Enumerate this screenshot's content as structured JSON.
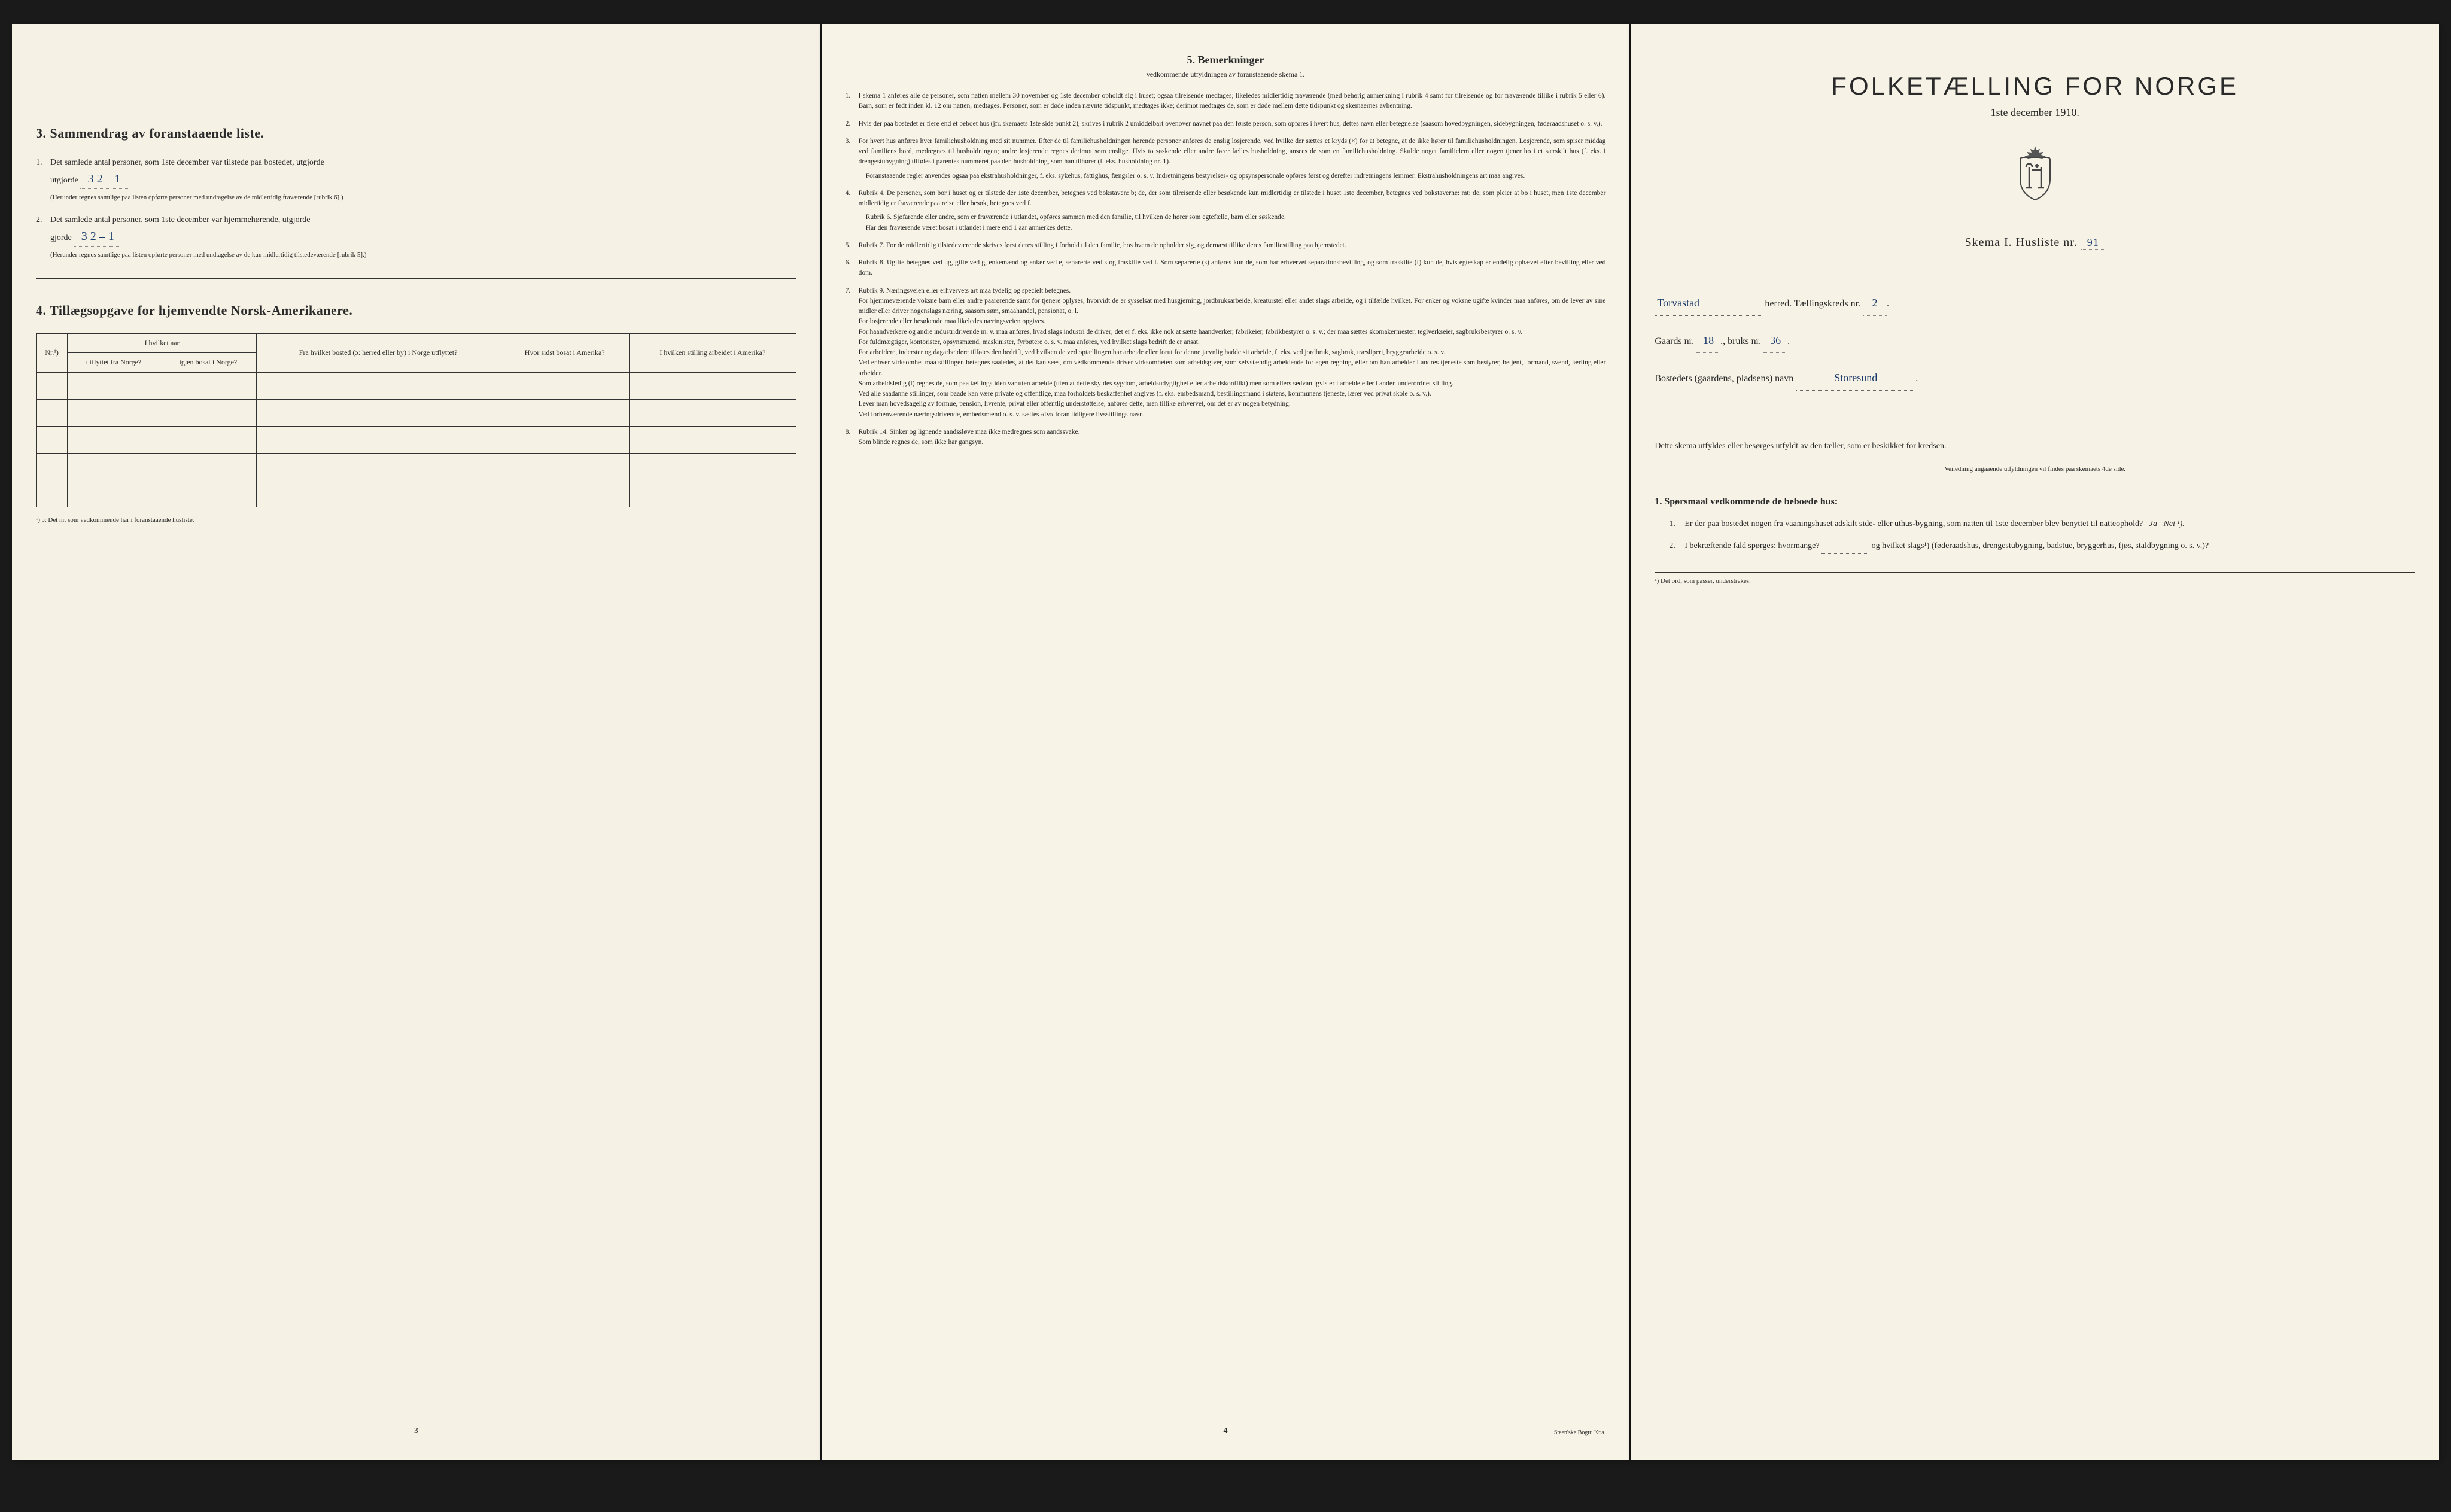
{
  "page1": {
    "section3_title": "3.  Sammendrag av foranstaaende liste.",
    "item1_text": "Det samlede antal personer, som 1ste december var tilstede paa bostedet, utgjorde",
    "item1_value": "3  2 – 1",
    "item1_note": "(Herunder regnes samtlige paa listen opførte personer med undtagelse av de midlertidig fraværende [rubrik 6].)",
    "item2_text": "Det samlede antal personer, som 1ste december var hjemmehørende, utgjorde",
    "item2_value": "3  2 – 1",
    "item2_note": "(Herunder regnes samtlige paa listen opførte personer med undtagelse av de kun midlertidig tilstedeværende [rubrik 5].)",
    "section4_title": "4.  Tillægsopgave for hjemvendte Norsk-Amerikanere.",
    "table_headers": {
      "col1": "Nr.¹)",
      "col2_top": "I hvilket aar",
      "col2a": "utflyttet fra Norge?",
      "col2b": "igjen bosat i Norge?",
      "col3": "Fra hvilket bosted (ɔ: herred eller by) i Norge utflyttet?",
      "col4": "Hvor sidst bosat i Amerika?",
      "col5": "I hvilken stilling arbeidet i Amerika?"
    },
    "footnote": "¹) ɔ: Det nr. som vedkommende har i foranstaaende husliste.",
    "page_num": "3"
  },
  "page2": {
    "title": "5.  Bemerkninger",
    "subtitle": "vedkommende utfyldningen av foranstaaende skema 1.",
    "remarks": [
      {
        "n": "1.",
        "text": "I skema 1 anføres alle de personer, som natten mellem 30 november og 1ste december opholdt sig i huset; ogsaa tilreisende medtages; likeledes midlertidig fraværende (med behørig anmerkning i rubrik 4 samt for tilreisende og for fraværende tillike i rubrik 5 eller 6). Barn, som er født inden kl. 12 om natten, medtages. Personer, som er døde inden nævnte tidspunkt, medtages ikke; derimot medtages de, som er døde mellem dette tidspunkt og skemaernes avhentning."
      },
      {
        "n": "2.",
        "text": "Hvis der paa bostedet er flere end ét beboet hus (jfr. skemaets 1ste side punkt 2), skrives i rubrik 2 umiddelbart ovenover navnet paa den første person, som opføres i hvert hus, dettes navn eller betegnelse (saasom hovedbygningen, sidebygningen, føderaadshuset o. s. v.)."
      },
      {
        "n": "3.",
        "text": "For hvert hus anføres hver familiehusholdning med sit nummer. Efter de til familiehusholdningen hørende personer anføres de enslig losjerende, ved hvilke der sættes et kryds (×) for at betegne, at de ikke hører til familiehusholdningen. Losjerende, som spiser middag ved familiens bord, medregnes til husholdningen; andre losjerende regnes derimot som enslige. Hvis to søskende eller andre fører fælles husholdning, ansees de som en familiehusholdning. Skulde noget familielem eller nogen tjener bo i et særskilt hus (f. eks. i drengestubygning) tilføies i parentes nummeret paa den husholdning, som han tilhører (f. eks. husholdning nr. 1).",
        "sub": "Foranstaaende regler anvendes ogsaa paa ekstrahusholdninger, f. eks. sykehus, fattighus, fængsler o. s. v. Indretningens bestyrelses- og opsynspersonale opføres først og derefter indretningens lemmer. Ekstrahusholdningens art maa angives."
      },
      {
        "n": "4.",
        "text": "Rubrik 4. De personer, som bor i huset og er tilstede der 1ste december, betegnes ved bokstaven: b; de, der som tilreisende eller besøkende kun midlertidig er tilstede i huset 1ste december, betegnes ved bokstaverne: mt; de, som pleier at bo i huset, men 1ste december midlertidig er fraværende paa reise eller besøk, betegnes ved f.",
        "sub": "Rubrik 6. Sjøfarende eller andre, som er fraværende i utlandet, opføres sammen med den familie, til hvilken de hører som egtefælle, barn eller søskende.\nHar den fraværende været bosat i utlandet i mere end 1 aar anmerkes dette."
      },
      {
        "n": "5.",
        "text": "Rubrik 7. For de midlertidig tilstedeværende skrives først deres stilling i forhold til den familie, hos hvem de opholder sig, og dernæst tillike deres familiestilling paa hjemstedet."
      },
      {
        "n": "6.",
        "text": "Rubrik 8. Ugifte betegnes ved ug, gifte ved g, enkemænd og enker ved e, separerte ved s og fraskilte ved f. Som separerte (s) anføres kun de, som har erhvervet separationsbevilling, og som fraskilte (f) kun de, hvis egteskap er endelig ophævet efter bevilling eller ved dom."
      },
      {
        "n": "7.",
        "text": "Rubrik 9. Næringsveien eller erhvervets art maa tydelig og specielt betegnes.\nFor hjemmeværende voksne barn eller andre paarørende samt for tjenere oplyses, hvorvidt de er sysselsat med husgjerning, jordbruksarbeide, kreaturstel eller andet slags arbeide, og i tilfælde hvilket. For enker og voksne ugifte kvinder maa anføres, om de lever av sine midler eller driver nogenslags næring, saasom søm, smaahandel, pensionat, o. l.\nFor losjerende eller besøkende maa likeledes næringsveien opgives.\nFor haandverkere og andre industridrivende m. v. maa anføres, hvad slags industri de driver; det er f. eks. ikke nok at sætte haandverker, fabrikeier, fabrikbestyrer o. s. v.; der maa sættes skomakermester, teglverkseier, sagbruksbestyrer o. s. v.\nFor fuldmægtiger, kontorister, opsynsmænd, maskinister, fyrbøtere o. s. v. maa anføres, ved hvilket slags bedrift de er ansat.\nFor arbeidere, inderster og dagarbeidere tilføies den bedrift, ved hvilken de ved optællingen har arbeide eller forut for denne jævnlig hadde sit arbeide, f. eks. ved jordbruk, sagbruk, træsliperi, bryggearbeide o. s. v.\nVed enhver virksomhet maa stillingen betegnes saaledes, at det kan sees, om vedkommende driver virksomheten som arbeidsgiver, som selvstændig arbeidende for egen regning, eller om han arbeider i andres tjeneste som bestyrer, betjent, formand, svend, lærling eller arbeider.\nSom arbeidsledig (l) regnes de, som paa tællingstiden var uten arbeide (uten at dette skyldes sygdom, arbeidsudygtighet eller arbeidskonflikt) men som ellers sedvanligvis er i arbeide eller i anden underordnet stilling.\nVed alle saadanne stillinger, som baade kan være private og offentlige, maa forholdets beskaffenhet angives (f. eks. embedsmand, bestillingsmand i statens, kommunens tjeneste, lærer ved privat skole o. s. v.).\nLever man hovedsagelig av formue, pension, livrente, privat eller offentlig understøttelse, anføres dette, men tillike erhvervet, om det er av nogen betydning.\nVed forhenværende næringsdrivende, embedsmænd o. s. v. sættes «fv» foran tidligere livsstillings navn."
      },
      {
        "n": "8.",
        "text": "Rubrik 14. Sinker og lignende aandssløve maa ikke medregnes som aandssvake.\nSom blinde regnes de, som ikke har gangsyn."
      }
    ],
    "page_num": "4",
    "printer": "Steen'ske Bogtr. Kr.a."
  },
  "page3": {
    "main_title": "FOLKETÆLLING FOR NORGE",
    "date": "1ste december 1910.",
    "schema_label": "Skema I.  Husliste nr.",
    "husliste_nr": "91",
    "herred_value": "Torvastad",
    "herred_label": "herred.  Tællingskreds nr.",
    "kreds_nr": "2",
    "gaard_label": "Gaards nr.",
    "gaard_nr": "18",
    "bruk_label": "bruks nr.",
    "bruk_nr": "36",
    "bosted_label": "Bostedets (gaardens, pladsens) navn",
    "bosted_value": "Storesund",
    "instruction": "Dette skema utfyldes eller besørges utfyldt av den tæller, som er beskikket for kredsen.",
    "instruction_sub": "Veiledning angaaende utfyldningen vil findes paa skemaets 4de side.",
    "q_heading": "1. Spørsmaal vedkommende de beboede hus:",
    "q1_num": "1.",
    "q1_text": "Er der paa bostedet nogen fra vaaningshuset adskilt side- eller uthus-bygning, som natten til 1ste december blev benyttet til natteophold?",
    "q1_ja": "Ja",
    "q1_nei": "Nei ¹).",
    "q2_num": "2.",
    "q2_text": "I bekræftende fald spørges: hvormange?",
    "q2_text2": "og hvilket slags¹) (føderaadshus, drengestubygning, badstue, bryggerhus, fjøs, staldbygning o. s. v.)?",
    "bottom_note": "¹) Det ord, som passer, understrekes."
  }
}
